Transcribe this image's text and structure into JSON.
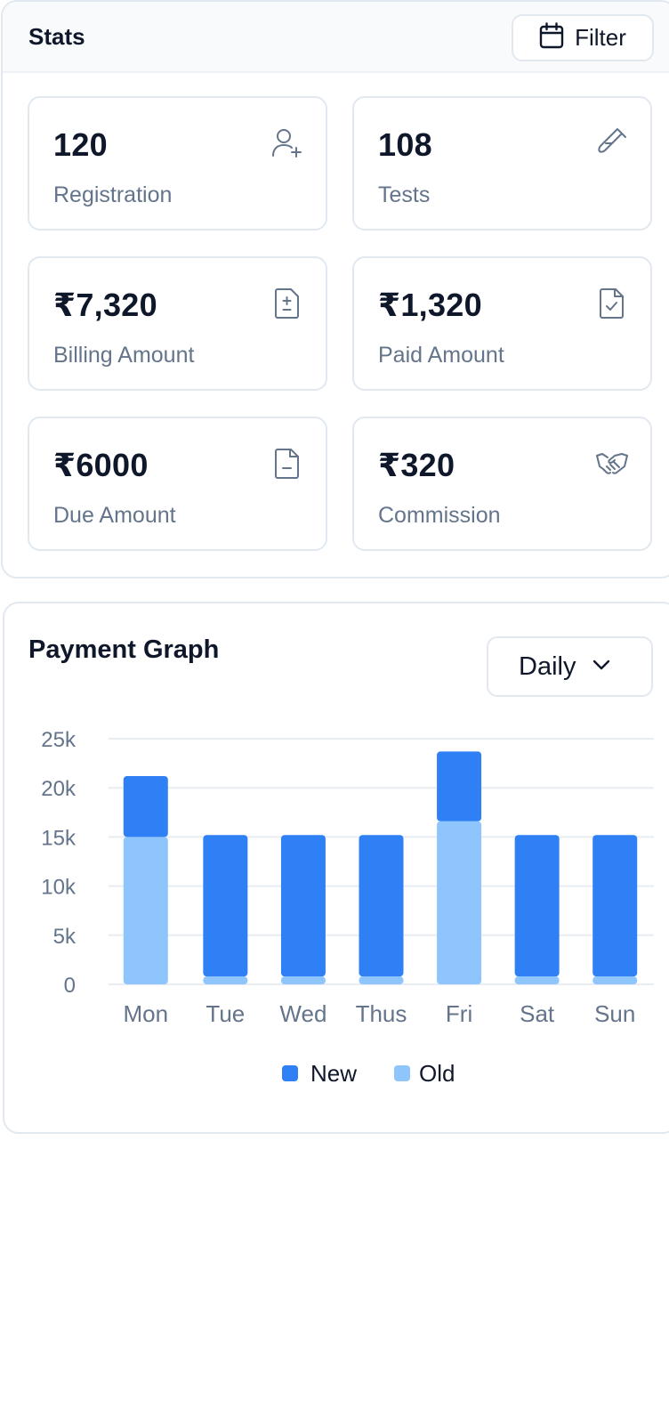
{
  "stats": {
    "title": "Stats",
    "filter_label": "Filter",
    "filter_icon": "calendar-icon",
    "tiles": [
      {
        "value": "120",
        "label": "Registration",
        "icon": "user-plus-icon"
      },
      {
        "value": "108",
        "label": "Tests",
        "icon": "test-tube-icon"
      },
      {
        "value": "₹7,320",
        "label": "Billing Amount",
        "icon": "invoice-plus-minus-icon"
      },
      {
        "value": "₹1,320",
        "label": "Paid Amount",
        "icon": "file-check-icon"
      },
      {
        "value": "₹6000",
        "label": "Due Amount",
        "icon": "file-minus-icon"
      },
      {
        "value": "₹320",
        "label": "Commission",
        "icon": "handshake-icon"
      }
    ]
  },
  "graph": {
    "title": "Payment Graph",
    "range_selected": "Daily",
    "range_icon": "chevron-down-icon"
  },
  "colors": {
    "new": "#2f80f4",
    "old": "#8ec5fd",
    "grid": "#e8edf3",
    "tick": "#64748b"
  },
  "chart_data": {
    "type": "bar",
    "stacked": true,
    "title": "Payment Graph",
    "categories": [
      "Mon",
      "Tue",
      "Wed",
      "Thus",
      "Fri",
      "Sat",
      "Sun"
    ],
    "series": [
      {
        "name": "Old",
        "values": [
          15000,
          800,
          800,
          800,
          16600,
          800,
          800
        ]
      },
      {
        "name": "New",
        "values": [
          6200,
          14400,
          14400,
          14400,
          7100,
          14400,
          14400
        ]
      }
    ],
    "yticks": [
      "0",
      "5k",
      "10k",
      "15k",
      "20k",
      "25k"
    ],
    "ylim": [
      0,
      25000
    ],
    "grid": true,
    "legend": "bottom-center",
    "xlabel": "",
    "ylabel": ""
  }
}
